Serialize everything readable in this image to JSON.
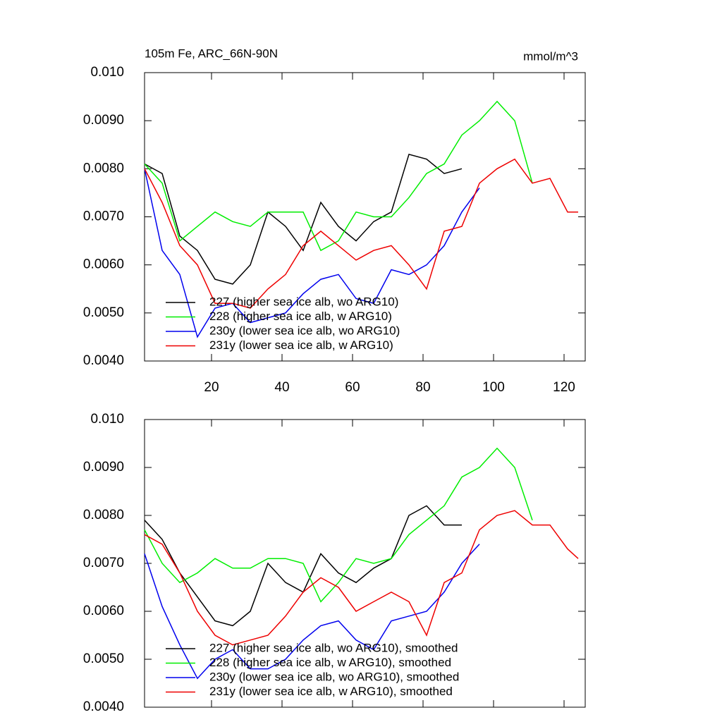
{
  "chart_data": [
    {
      "type": "line",
      "title": "105m Fe, ARC_66N-90N",
      "units": "mmol/m^3",
      "x": [
        1,
        6,
        11,
        16,
        21,
        26,
        31,
        36,
        41,
        46,
        51,
        56,
        61,
        66,
        71,
        76,
        81,
        86,
        91,
        96,
        101,
        106,
        111,
        116,
        121,
        124
      ],
      "xlim": [
        1,
        126
      ],
      "xticks": [
        20,
        40,
        60,
        80,
        100,
        120
      ],
      "show_xtick_labels": true,
      "ylim": [
        0.004,
        0.01
      ],
      "yticks": [
        {
          "value": 0.004,
          "label": "0.0040"
        },
        {
          "value": 0.005,
          "label": "0.0050"
        },
        {
          "value": 0.006,
          "label": "0.0060"
        },
        {
          "value": 0.007,
          "label": "0.0070"
        },
        {
          "value": 0.008,
          "label": "0.0080"
        },
        {
          "value": 0.009,
          "label": "0.0090"
        },
        {
          "value": 0.01,
          "label": "0.010"
        }
      ],
      "legend": "lower left",
      "series": [
        {
          "name": "227 (higher sea ice alb, wo ARG10)",
          "color": "#000000",
          "values": [
            0.0081,
            0.0079,
            0.0066,
            0.0063,
            0.0057,
            0.0056,
            0.006,
            0.0071,
            0.0068,
            0.0063,
            0.0073,
            0.0068,
            0.0065,
            0.0069,
            0.0071,
            0.0083,
            0.0082,
            0.0079,
            0.008,
            null,
            null,
            null,
            null,
            null,
            null,
            null
          ]
        },
        {
          "name": "228 (higher sea ice alb, w ARG10)",
          "color": "#00ee00",
          "values": [
            0.0081,
            0.0077,
            0.0065,
            0.0068,
            0.0071,
            0.0069,
            0.0068,
            0.0071,
            0.0071,
            0.0071,
            0.0063,
            0.0065,
            0.0071,
            0.007,
            0.007,
            0.0074,
            0.0079,
            0.0081,
            0.0087,
            0.009,
            0.0094,
            0.009,
            0.0077,
            null,
            null,
            null
          ]
        },
        {
          "name": "230y (lower sea ice alb, wo ARG10)",
          "color": "#0000ee",
          "values": [
            0.008,
            0.0063,
            0.0058,
            0.0045,
            0.0051,
            0.0052,
            0.0048,
            0.0049,
            0.005,
            0.0054,
            0.0057,
            0.0058,
            0.0053,
            0.0052,
            0.0059,
            0.0058,
            0.006,
            0.0064,
            0.0071,
            0.0076,
            null,
            null,
            null,
            null,
            null,
            null
          ]
        },
        {
          "name": "231y (lower sea ice alb, w ARG10)",
          "color": "#ee0000",
          "values": [
            0.008,
            0.0073,
            0.0064,
            0.006,
            0.0052,
            0.0052,
            0.0051,
            0.0055,
            0.0058,
            0.0064,
            0.0067,
            0.0064,
            0.0061,
            0.0063,
            0.0064,
            0.006,
            0.0055,
            0.0067,
            0.0068,
            0.0077,
            0.008,
            0.0082,
            0.0077,
            0.0078,
            0.0071,
            0.0071
          ]
        }
      ]
    },
    {
      "type": "line",
      "x": [
        1,
        6,
        11,
        16,
        21,
        26,
        31,
        36,
        41,
        46,
        51,
        56,
        61,
        66,
        71,
        76,
        81,
        86,
        91,
        96,
        101,
        106,
        111,
        116,
        121,
        124
      ],
      "xlim": [
        1,
        126
      ],
      "xticks": [
        20,
        40,
        60,
        80,
        100,
        120
      ],
      "show_xtick_labels": false,
      "ylim": [
        0.004,
        0.01
      ],
      "yticks": [
        {
          "value": 0.004,
          "label": "0.0040"
        },
        {
          "value": 0.005,
          "label": "0.0050"
        },
        {
          "value": 0.006,
          "label": "0.0060"
        },
        {
          "value": 0.007,
          "label": "0.0070"
        },
        {
          "value": 0.008,
          "label": "0.0080"
        },
        {
          "value": 0.009,
          "label": "0.0090"
        },
        {
          "value": 0.01,
          "label": "0.010"
        }
      ],
      "legend": "lower left",
      "series": [
        {
          "name": "227 (higher sea ice alb, wo ARG10), smoothed",
          "color": "#000000",
          "values": [
            0.0079,
            0.0075,
            0.0068,
            0.0063,
            0.0058,
            0.0057,
            0.006,
            0.007,
            0.0066,
            0.0064,
            0.0072,
            0.0068,
            0.0066,
            0.0069,
            0.0071,
            0.008,
            0.0082,
            0.0078,
            0.0078,
            null,
            null,
            null,
            null,
            null,
            null,
            null
          ]
        },
        {
          "name": "228 (higher sea ice alb, w ARG10), smoothed",
          "color": "#00ee00",
          "values": [
            0.0077,
            0.007,
            0.0066,
            0.0068,
            0.0071,
            0.0069,
            0.0069,
            0.0071,
            0.0071,
            0.007,
            0.0062,
            0.0066,
            0.0071,
            0.007,
            0.0071,
            0.0076,
            0.0079,
            0.0082,
            0.0088,
            0.009,
            0.0094,
            0.009,
            0.0079,
            null,
            null,
            null
          ]
        },
        {
          "name": "230y (lower sea ice alb, wo ARG10), smoothed",
          "color": "#0000ee",
          "values": [
            0.0072,
            0.0061,
            0.0053,
            0.0046,
            0.005,
            0.0052,
            0.0048,
            0.0048,
            0.005,
            0.0054,
            0.0057,
            0.0058,
            0.0054,
            0.0052,
            0.0058,
            0.0059,
            0.006,
            0.0064,
            0.007,
            0.0074,
            null,
            null,
            null,
            null,
            null,
            null
          ]
        },
        {
          "name": "231y (lower sea ice alb, w ARG10), smoothed",
          "color": "#ee0000",
          "values": [
            0.0076,
            0.0074,
            0.0068,
            0.006,
            0.0055,
            0.0053,
            0.0054,
            0.0055,
            0.0059,
            0.0064,
            0.0067,
            0.0065,
            0.006,
            0.0062,
            0.0064,
            0.0062,
            0.0055,
            0.0066,
            0.0068,
            0.0077,
            0.008,
            0.0081,
            0.0078,
            0.0078,
            0.0073,
            0.0071
          ]
        }
      ]
    }
  ]
}
